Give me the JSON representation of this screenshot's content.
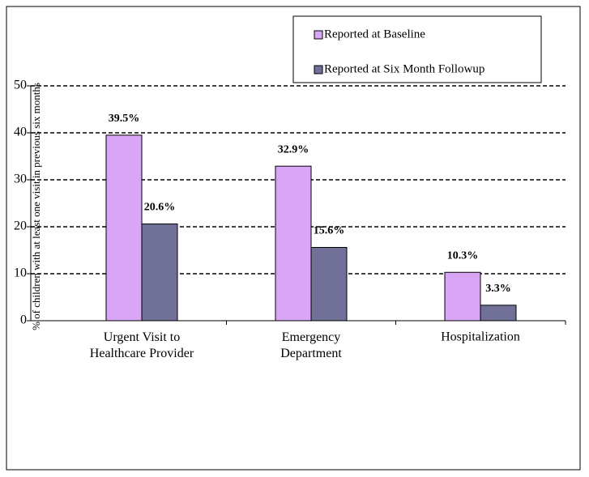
{
  "chart_data": {
    "type": "bar",
    "y_label": "% of children with at least one visit in previous six months",
    "categories": [
      "Urgent Visit to Healthcare Provider",
      "Emergency Department",
      "Hospitalization"
    ],
    "series": [
      {
        "name": "Reported at Baseline",
        "color": "#d9a6f5",
        "values": [
          39.5,
          32.9,
          10.3
        ],
        "value_labels": [
          "39.5%",
          "32.9%",
          "10.3%"
        ]
      },
      {
        "name": "Reported at Six Month Followup",
        "color": "#707098",
        "values": [
          20.6,
          15.6,
          3.3
        ],
        "value_labels": [
          "20.6%",
          "15.6%",
          "3.3%"
        ]
      }
    ],
    "ylim": [
      0,
      50
    ],
    "yticks": [
      0,
      10,
      20,
      30,
      40,
      50
    ],
    "grid": true
  }
}
